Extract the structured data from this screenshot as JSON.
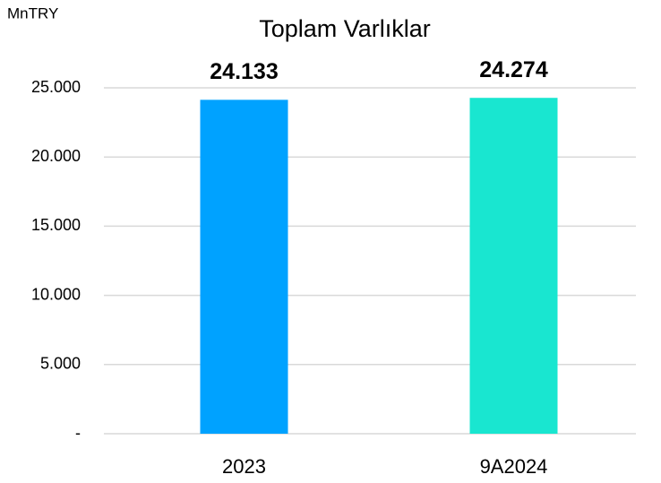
{
  "chart_data": {
    "type": "bar",
    "title": "Toplam Varlıklar",
    "y_label": "MnTRY",
    "categories": [
      "2023",
      "9A2024"
    ],
    "values": [
      24133,
      24274
    ],
    "value_labels": [
      "24.133",
      "24.274"
    ],
    "colors": [
      "#00a2ff",
      "#19e6d0"
    ],
    "ylim": [
      0,
      25000
    ],
    "yticks": [
      {
        "value": 0,
        "label": "-"
      },
      {
        "value": 5000,
        "label": "5.000"
      },
      {
        "value": 10000,
        "label": "10.000"
      },
      {
        "value": 15000,
        "label": "15.000"
      },
      {
        "value": 20000,
        "label": "20.000"
      },
      {
        "value": 25000,
        "label": "25.000"
      }
    ],
    "grid": true
  }
}
